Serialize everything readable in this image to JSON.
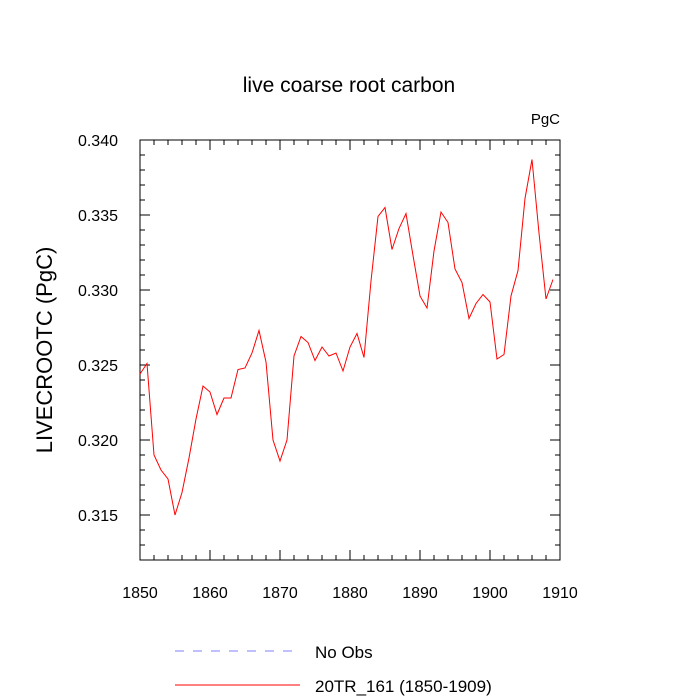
{
  "chart_data": {
    "type": "line",
    "title": "live coarse root carbon",
    "units_label": "PgC",
    "xlabel": "",
    "ylabel": "LIVECROOTC  (PgC)",
    "xlim": [
      1850,
      1910
    ],
    "ylim": [
      0.312,
      0.34
    ],
    "x_ticks": [
      1850,
      1860,
      1870,
      1880,
      1890,
      1900,
      1910
    ],
    "x_tick_labels": [
      "1850",
      "1860",
      "1870",
      "1880",
      "1890",
      "1900",
      "1910"
    ],
    "y_ticks": [
      0.315,
      0.32,
      0.325,
      0.33,
      0.335,
      0.34
    ],
    "y_tick_labels": [
      "0.315",
      "0.320",
      "0.325",
      "0.330",
      "0.335",
      "0.340"
    ],
    "legend": [
      {
        "label": "No Obs",
        "color": "#8080ff",
        "style": "dashed"
      },
      {
        "label": "20TR_161 (1850-1909)",
        "color": "#ff0000",
        "style": "solid"
      }
    ],
    "series": [
      {
        "name": "20TR_161 (1850-1909)",
        "color": "#ff0000",
        "x": [
          1850,
          1851,
          1852,
          1853,
          1854,
          1855,
          1856,
          1857,
          1858,
          1859,
          1860,
          1861,
          1862,
          1863,
          1864,
          1865,
          1866,
          1867,
          1868,
          1869,
          1870,
          1871,
          1872,
          1873,
          1874,
          1875,
          1876,
          1877,
          1878,
          1879,
          1880,
          1881,
          1882,
          1883,
          1884,
          1885,
          1886,
          1887,
          1888,
          1889,
          1890,
          1891,
          1892,
          1893,
          1894,
          1895,
          1896,
          1897,
          1898,
          1899,
          1900,
          1901,
          1902,
          1903,
          1904,
          1905,
          1906,
          1907,
          1908,
          1909
        ],
        "values": [
          0.3244,
          0.3251,
          0.319,
          0.318,
          0.3174,
          0.315,
          0.3165,
          0.3188,
          0.3214,
          0.3236,
          0.3232,
          0.3217,
          0.3228,
          0.3228,
          0.3247,
          0.3248,
          0.3258,
          0.3273,
          0.3252,
          0.32,
          0.3186,
          0.32,
          0.3256,
          0.3269,
          0.3265,
          0.3253,
          0.3262,
          0.3256,
          0.3258,
          0.3246,
          0.3262,
          0.3271,
          0.3255,
          0.3306,
          0.3349,
          0.3355,
          0.3327,
          0.3341,
          0.3351,
          0.3323,
          0.3296,
          0.3288,
          0.3326,
          0.3352,
          0.3345,
          0.3314,
          0.3305,
          0.3281,
          0.3291,
          0.3297,
          0.3292,
          0.3254,
          0.3257,
          0.3296,
          0.3313,
          0.3361,
          0.3387,
          0.3338,
          0.3294,
          0.3307
        ]
      }
    ]
  }
}
